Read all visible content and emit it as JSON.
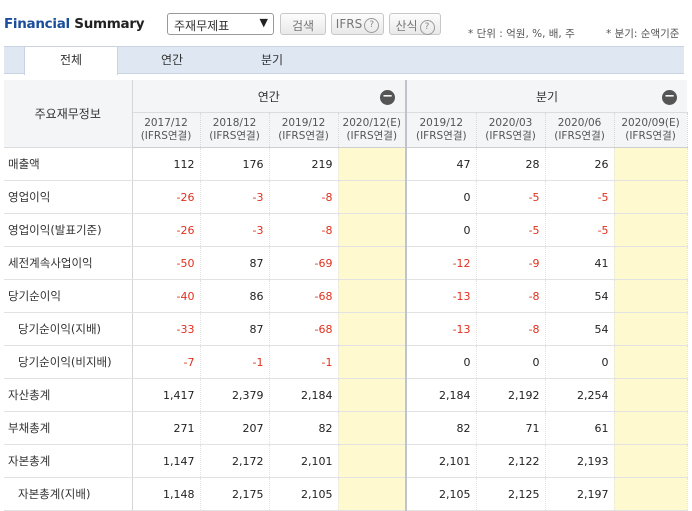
{
  "header": {
    "title_prefix": "Financial",
    "title_suffix": "Summary",
    "select_value": "주재무제표",
    "search_button": "검색",
    "ifrs_button": "IFRS",
    "formula_button": "산식",
    "unit_note": "* 단위 : 억원, %, 배, 주",
    "quarter_note": "* 분기: 순액기준"
  },
  "tabs": [
    {
      "label": "전체"
    },
    {
      "label": "연간"
    },
    {
      "label": "분기"
    }
  ],
  "table": {
    "item_header": "주요재무정보",
    "annual_header": "연간",
    "quarter_header": "분기",
    "columns": [
      {
        "period": "2017/12",
        "basis": "(IFRS연결)"
      },
      {
        "period": "2018/12",
        "basis": "(IFRS연결)"
      },
      {
        "period": "2019/12",
        "basis": "(IFRS연결)"
      },
      {
        "period": "2020/12(E)",
        "basis": "(IFRS연결)"
      },
      {
        "period": "2019/12",
        "basis": "(IFRS연결)"
      },
      {
        "period": "2020/03",
        "basis": "(IFRS연결)"
      },
      {
        "period": "2020/06",
        "basis": "(IFRS연결)"
      },
      {
        "period": "2020/09(E)",
        "basis": "(IFRS연결)"
      }
    ],
    "rows": [
      {
        "label": "매출액",
        "values": [
          "112",
          "176",
          "219",
          "",
          "47",
          "28",
          "26",
          ""
        ]
      },
      {
        "label": "영업이익",
        "values": [
          "-26",
          "-3",
          "-8",
          "",
          "0",
          "-5",
          "-5",
          ""
        ]
      },
      {
        "label": "영업이익(발표기준)",
        "values": [
          "-26",
          "-3",
          "-8",
          "",
          "0",
          "-5",
          "-5",
          ""
        ]
      },
      {
        "label": "세전계속사업이익",
        "values": [
          "-50",
          "87",
          "-69",
          "",
          "-12",
          "-9",
          "41",
          ""
        ]
      },
      {
        "label": "당기순이익",
        "values": [
          "-40",
          "86",
          "-68",
          "",
          "-13",
          "-8",
          "54",
          ""
        ]
      },
      {
        "label": "당기순이익(지배)",
        "sub": true,
        "values": [
          "-33",
          "87",
          "-68",
          "",
          "-13",
          "-8",
          "54",
          ""
        ]
      },
      {
        "label": "당기순이익(비지배)",
        "sub": true,
        "values": [
          "-7",
          "-1",
          "-1",
          "",
          "0",
          "0",
          "0",
          ""
        ]
      },
      {
        "label": "자산총계",
        "values": [
          "1,417",
          "2,379",
          "2,184",
          "",
          "2,184",
          "2,192",
          "2,254",
          ""
        ]
      },
      {
        "label": "부채총계",
        "values": [
          "271",
          "207",
          "82",
          "",
          "82",
          "71",
          "61",
          ""
        ]
      },
      {
        "label": "자본총계",
        "values": [
          "1,147",
          "2,172",
          "2,101",
          "",
          "2,101",
          "2,122",
          "2,193",
          ""
        ]
      },
      {
        "label": "자본총계(지배)",
        "sub": true,
        "values": [
          "1,148",
          "2,175",
          "2,105",
          "",
          "2,105",
          "2,125",
          "2,197",
          ""
        ]
      }
    ]
  },
  "colors": {
    "negative": "#e0301e",
    "estimate_bg": "#fff9cf",
    "tab_bg": "#dfe7f3",
    "brand": "#1a4d9b"
  }
}
